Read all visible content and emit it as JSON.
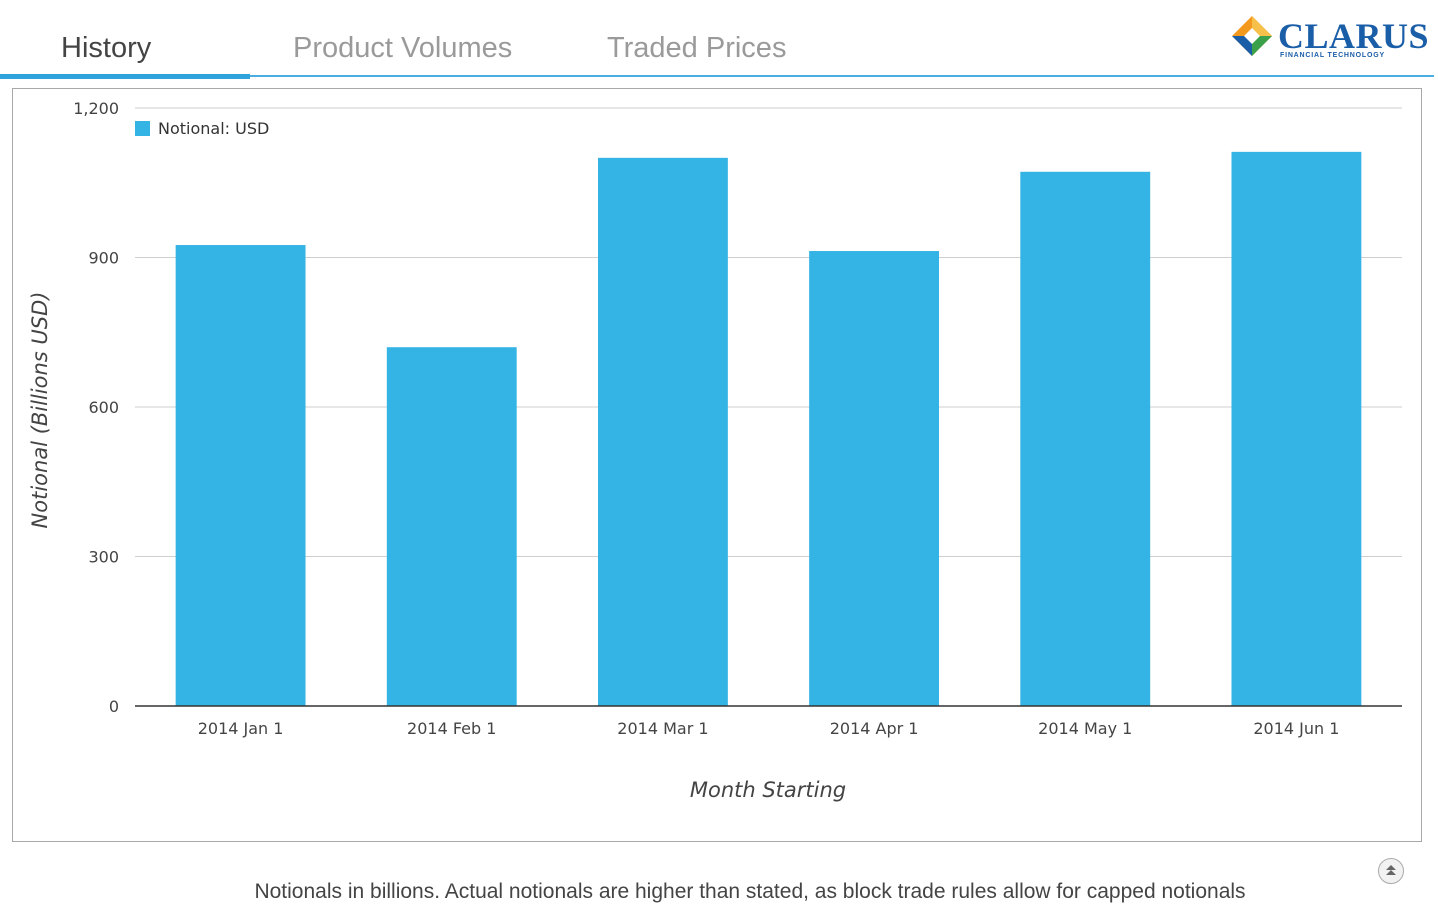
{
  "tabs": [
    {
      "label": "History",
      "active": true
    },
    {
      "label": "Product Volumes",
      "active": false
    },
    {
      "label": "Traded Prices",
      "active": false
    }
  ],
  "logo": {
    "name": "CLARUS",
    "tagline": "FINANCIAL TECHNOLOGY"
  },
  "colors": {
    "accent": "#2ea3dc",
    "bar": "#34b4e4",
    "logo": "#1b5ea8"
  },
  "chart_data": {
    "type": "bar",
    "categories": [
      "2014 Jan 1",
      "2014 Feb 1",
      "2014 Mar 1",
      "2014 Apr 1",
      "2014 May 1",
      "2014 Jun 1"
    ],
    "series": [
      {
        "name": "Notional: USD",
        "values": [
          925,
          720,
          1100,
          913,
          1072,
          1112
        ],
        "color": "#34b4e4"
      }
    ],
    "xlabel": "Month Starting",
    "ylabel": "Notional (Billions USD)",
    "ylim": [
      0,
      1200
    ],
    "yticks": [
      0,
      300,
      600,
      900,
      1200
    ],
    "ytick_labels": [
      "0",
      "300",
      "600",
      "900",
      "1,200"
    ],
    "grid": true,
    "legend_position": "top-left"
  },
  "footnote": "Notionals in billions. Actual notionals are higher than stated, as block trade rules allow for capped notionals",
  "scroll_icon": "scroll-top-icon"
}
